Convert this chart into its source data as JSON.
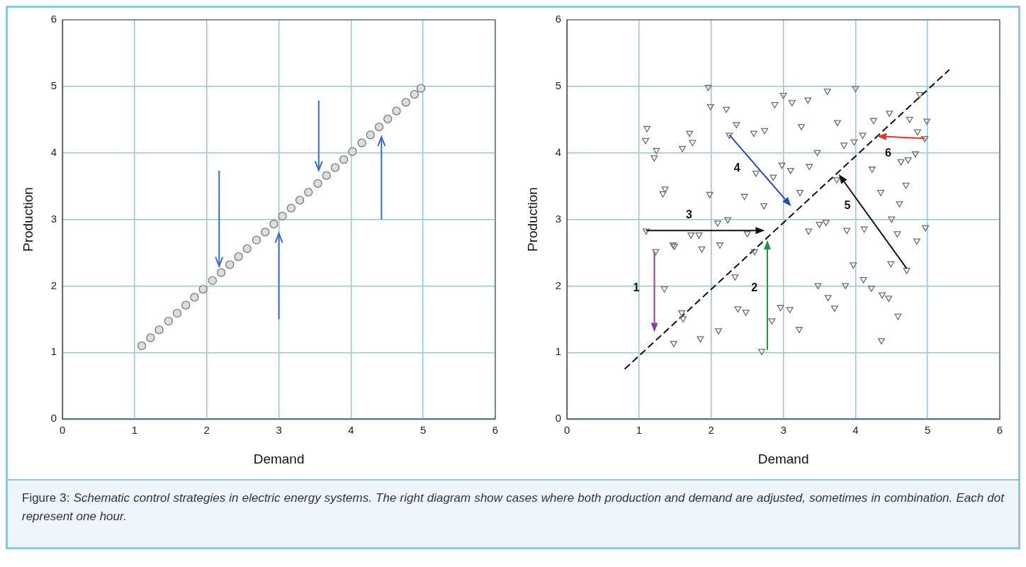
{
  "chart_data": [
    {
      "type": "scatter",
      "xlabel": "Demand",
      "ylabel": "Production",
      "xlim": [
        0,
        6
      ],
      "ylim": [
        0,
        6
      ],
      "xticks": [
        0,
        1,
        2,
        3,
        4,
        5,
        6
      ],
      "yticks": [
        0,
        1,
        2,
        3,
        4,
        5,
        6
      ],
      "grid": true,
      "series": [
        {
          "marker": "circle",
          "color": "#7a7a7a",
          "x": [
            1.1,
            1.22,
            1.34,
            1.47,
            1.59,
            1.71,
            1.83,
            1.95,
            2.08,
            2.2,
            2.32,
            2.44,
            2.56,
            2.69,
            2.81,
            2.93,
            3.05,
            3.17,
            3.29,
            3.41,
            3.54,
            3.66,
            3.78,
            3.9,
            4.02,
            4.15,
            4.27,
            4.39,
            4.51,
            4.63,
            4.76,
            4.88,
            4.97
          ],
          "values": [
            1.1,
            1.22,
            1.34,
            1.47,
            1.59,
            1.71,
            1.83,
            1.95,
            2.08,
            2.2,
            2.32,
            2.44,
            2.56,
            2.69,
            2.81,
            2.93,
            3.05,
            3.17,
            3.29,
            3.41,
            3.54,
            3.66,
            3.78,
            3.9,
            4.02,
            4.15,
            4.27,
            4.39,
            4.51,
            4.63,
            4.76,
            4.88,
            4.97
          ]
        }
      ]
    },
    {
      "type": "scatter",
      "xlabel": "Demand",
      "ylabel": "Production",
      "xlim": [
        0,
        6
      ],
      "ylim": [
        0,
        6
      ],
      "xticks": [
        0,
        1,
        2,
        3,
        4,
        5,
        6
      ],
      "yticks": [
        0,
        1,
        2,
        3,
        4,
        5,
        6
      ],
      "grid": true,
      "annotations": [
        "1",
        "2",
        "3",
        "4",
        "5",
        {
          "text": "6",
          "x": 4.3,
          "y": 4.25
        },
        "Figure 3: Schematic control strategies in electric energy systems. The right diagram show cases where both production and demand are adjusted, sometimes in combination. Each dot represent one hour."
      ],
      "series": [
        {
          "marker": "triangle",
          "color": "#6e6e6e",
          "x": [
            1.96,
            1.99,
            2.21,
            2.88,
            3.0,
            3.12,
            3.34,
            1.11,
            1.09,
            1.24,
            1.21,
            1.7,
            1.74,
            1.6,
            2.35,
            2.25,
            2.59,
            2.74,
            3.25,
            2.98,
            3.1,
            3.36,
            2.62,
            2.86,
            1.36,
            1.33,
            1.98,
            2.46,
            2.73,
            3.23,
            3.61,
            4.0,
            4.89,
            3.75,
            4.25,
            4.47,
            4.75,
            4.99,
            4.86,
            4.96,
            4.1,
            3.98,
            3.84,
            3.47,
            4.83,
            4.73,
            4.63,
            4.23,
            3.74,
            4.7,
            4.35,
            4.61,
            2.23,
            2.09,
            1.1,
            1.72,
            1.83,
            2.5,
            3.35,
            1.47,
            1.49,
            1.87,
            2.12,
            1.23,
            2.6,
            2.33,
            1.35,
            2.37,
            2.48,
            1.59,
            1.61,
            2.96,
            3.09,
            2.84,
            3.22,
            2.1,
            1.85,
            1.48,
            2.7,
            4.5,
            3.59,
            3.5,
            3.88,
            4.12,
            4.97,
            4.58,
            4.85,
            3.97,
            4.49,
            4.71,
            4.11,
            3.48,
            3.86,
            4.22,
            4.37,
            4.46,
            3.62,
            3.71,
            4.59,
            4.36
          ],
          "values": [
            4.99,
            4.7,
            4.66,
            4.73,
            4.87,
            4.76,
            4.8,
            4.37,
            4.19,
            4.04,
            3.93,
            4.3,
            4.16,
            4.07,
            4.43,
            4.27,
            4.3,
            4.34,
            4.4,
            3.82,
            3.74,
            3.8,
            3.7,
            3.64,
            3.46,
            3.39,
            3.38,
            3.35,
            3.21,
            3.41,
            4.93,
            4.97,
            4.88,
            4.46,
            4.49,
            4.6,
            4.51,
            4.48,
            4.32,
            4.22,
            4.27,
            4.17,
            4.12,
            4.01,
            3.99,
            3.9,
            3.87,
            3.76,
            3.6,
            3.52,
            3.41,
            3.24,
            3.0,
            2.95,
            2.83,
            2.77,
            2.77,
            2.79,
            2.83,
            2.62,
            2.6,
            2.56,
            2.62,
            2.52,
            2.52,
            2.14,
            1.96,
            1.66,
            1.61,
            1.6,
            1.51,
            1.68,
            1.65,
            1.48,
            1.35,
            1.33,
            1.21,
            1.14,
            1.02,
            3.01,
            2.96,
            2.93,
            2.84,
            2.86,
            2.88,
            2.79,
            2.68,
            2.32,
            2.34,
            2.24,
            2.1,
            2.01,
            2.01,
            1.97,
            1.87,
            1.82,
            1.83,
            1.67,
            1.55,
            1.18
          ]
        },
        {
          "type": "line",
          "marker": "none",
          "line_style": "dashed",
          "color": "#111111",
          "x": [
            0.8,
            5.3
          ],
          "values": [
            0.75,
            5.25
          ]
        }
      ]
    }
  ]
}
